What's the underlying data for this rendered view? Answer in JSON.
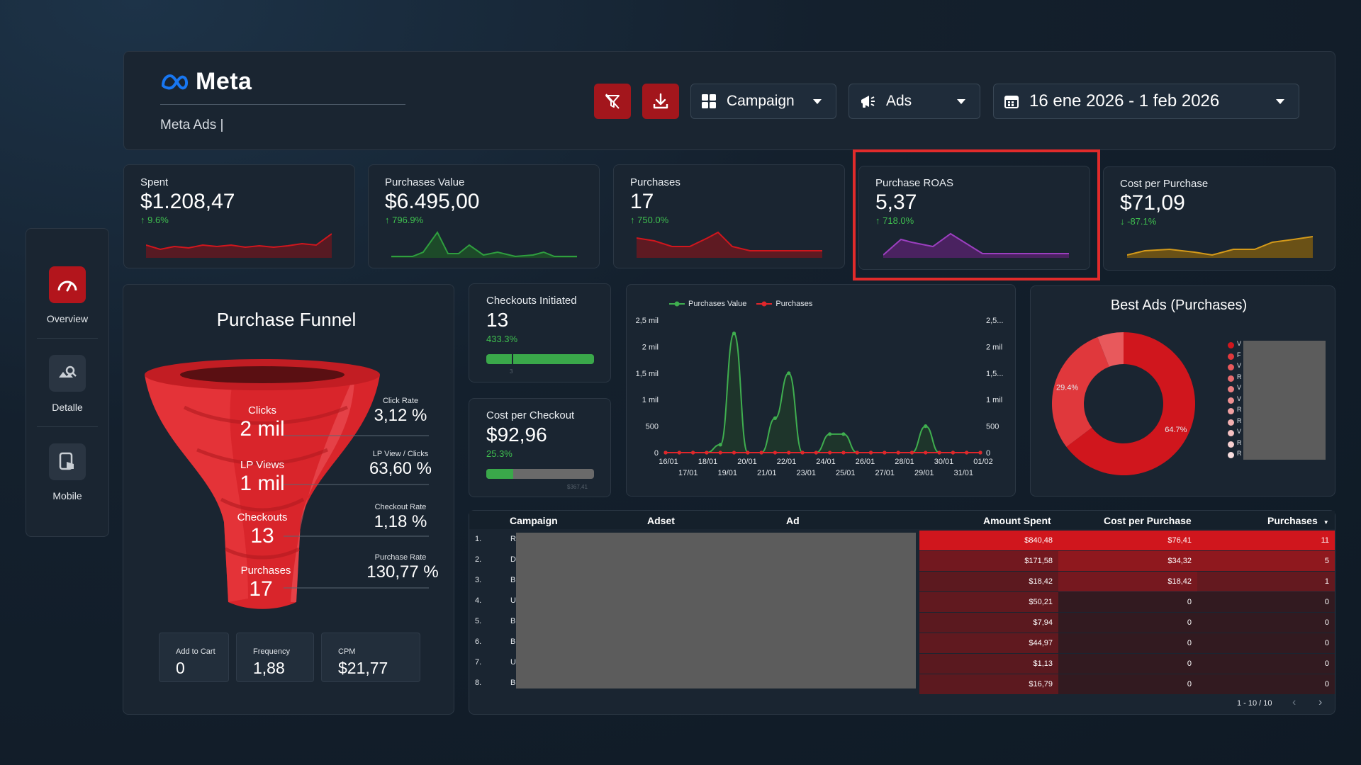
{
  "header": {
    "brand": "Meta",
    "subtitle": "Meta Ads |",
    "campaign_dropdown": "Campaign",
    "ads_dropdown": "Ads",
    "date_range": "16 ene 2026 - 1 feb 2026"
  },
  "sidebar": {
    "items": [
      {
        "label": "Overview",
        "icon": "gauge-icon",
        "active": true
      },
      {
        "label": "Detalle",
        "icon": "image-search-icon",
        "active": false
      },
      {
        "label": "Mobile",
        "icon": "touch-device-icon",
        "active": false
      }
    ]
  },
  "kpis": [
    {
      "label": "Spent",
      "value": "$1.208,47",
      "delta": "9.6%",
      "direction": "up",
      "color": "#b3151c"
    },
    {
      "label": "Purchases Value",
      "value": "$6.495,00",
      "delta": "796.9%",
      "direction": "up",
      "color": "#2f9e3f"
    },
    {
      "label": "Purchases",
      "value": "17",
      "delta": "750.0%",
      "direction": "up",
      "color": "#b3151c"
    },
    {
      "label": "Purchase ROAS",
      "value": "5,37",
      "delta": "718.0%",
      "direction": "up",
      "color": "#9b3fbf"
    },
    {
      "label": "Cost per Purchase",
      "value": "$71,09",
      "delta": "-87.1%",
      "direction": "down",
      "color": "#d49a1a"
    }
  ],
  "funnel": {
    "title": "Purchase Funnel",
    "stages": [
      {
        "label": "Clicks",
        "value": "2 mil"
      },
      {
        "label": "LP Views",
        "value": "1 mil"
      },
      {
        "label": "Checkouts",
        "value": "13"
      },
      {
        "label": "Purchases",
        "value": "17"
      }
    ],
    "rates": [
      {
        "label": "Click Rate",
        "value": "3,12 %"
      },
      {
        "label": "LP View / Clicks",
        "value": "63,60 %"
      },
      {
        "label": "Checkout Rate",
        "value": "1,18 %"
      },
      {
        "label": "Purchase Rate",
        "value": "130,77 %"
      }
    ],
    "mini": [
      {
        "label": "Add to Cart",
        "value": "0"
      },
      {
        "label": "Frequency",
        "value": "1,88"
      },
      {
        "label": "CPM",
        "value": "$21,77"
      }
    ]
  },
  "checkouts": {
    "label": "Checkouts Initiated",
    "value": "13",
    "delta": "433.3%",
    "progress": 1.0,
    "target_label": "3"
  },
  "cost_per_checkout": {
    "label": "Cost per Checkout",
    "value": "$92,96",
    "delta": "25.3%",
    "progress": 0.25,
    "target_label": "$367,41"
  },
  "chart_data": [
    {
      "type": "line",
      "series": [
        {
          "name": "Purchases Value",
          "color": "#3fae4f",
          "values": [
            0,
            0,
            0,
            0,
            150,
            2250,
            0,
            0,
            650,
            1500,
            0,
            0,
            350,
            350,
            0,
            0,
            0,
            0,
            0,
            500,
            0,
            0,
            0,
            0
          ]
        },
        {
          "name": "Purchases",
          "color": "#e0262b",
          "values": [
            0,
            0,
            0,
            0,
            0,
            0,
            0,
            0,
            0,
            0,
            0,
            0,
            0,
            0,
            0,
            0,
            0,
            0,
            0,
            0,
            0,
            0,
            0,
            0
          ]
        }
      ],
      "x_labels_top": [
        "16/01",
        "18/01",
        "20/01",
        "22/01",
        "24/01",
        "26/01",
        "28/01",
        "30/01",
        "01/02"
      ],
      "x_labels_bottom": [
        "17/01",
        "19/01",
        "21/01",
        "23/01",
        "25/01",
        "27/01",
        "29/01",
        "31/01"
      ],
      "y_ticks_left": [
        "0",
        "500",
        "1 mil",
        "1,5 mil",
        "2 mil",
        "2,5 mil"
      ],
      "y_ticks_right": [
        "0",
        "500",
        "1 mil",
        "1,5...",
        "2 mil",
        "2,5..."
      ],
      "ylim": [
        0,
        2500
      ],
      "legend_position": "top-left"
    },
    {
      "type": "pie",
      "title": "Best Ads (Purchases)",
      "slices": [
        {
          "value": 64.7,
          "label": "64.7%",
          "color": "#d0161d"
        },
        {
          "value": 29.4,
          "label": "29.4%",
          "color": "#e0383c"
        },
        {
          "value": 5.9,
          "label": "",
          "color": "#e8595c"
        }
      ],
      "legend_letters": [
        "V",
        "F",
        "V",
        "R",
        "V",
        "V",
        "R",
        "R",
        "V",
        "R",
        "R"
      ],
      "legend_colors": [
        "#d0161d",
        "#e0383c",
        "#e8595c",
        "#e86b6e",
        "#ec7f81",
        "#ee8f91",
        "#f0a0a2",
        "#f2b0b1",
        "#f4c0c1",
        "#f6cfd0",
        "#f8dedf"
      ]
    }
  ],
  "table": {
    "headers": [
      "Campaign",
      "Adset",
      "Ad",
      "Amount Spent",
      "Cost per Purchase",
      "Purchases"
    ],
    "rows": [
      {
        "num": "1.",
        "camp": "RI",
        "spent": "$840,48",
        "cpp": "$76,41",
        "purchases": "11"
      },
      {
        "num": "2.",
        "camp": "DI",
        "spent": "$171,58",
        "cpp": "$34,32",
        "purchases": "5"
      },
      {
        "num": "3.",
        "camp": "BC",
        "spent": "$18,42",
        "cpp": "$18,42",
        "purchases": "1"
      },
      {
        "num": "4.",
        "camp": "UI",
        "spent": "$50,21",
        "cpp": "0",
        "purchases": "0"
      },
      {
        "num": "5.",
        "camp": "BC",
        "spent": "$7,94",
        "cpp": "0",
        "purchases": "0"
      },
      {
        "num": "6.",
        "camp": "BC",
        "spent": "$44,97",
        "cpp": "0",
        "purchases": "0"
      },
      {
        "num": "7.",
        "camp": "UI",
        "spent": "$1,13",
        "cpp": "0",
        "purchases": "0"
      },
      {
        "num": "8.",
        "camp": "BC",
        "spent": "$16,79",
        "cpp": "0",
        "purchases": "0"
      }
    ],
    "pagination": "1 - 10 / 10"
  }
}
